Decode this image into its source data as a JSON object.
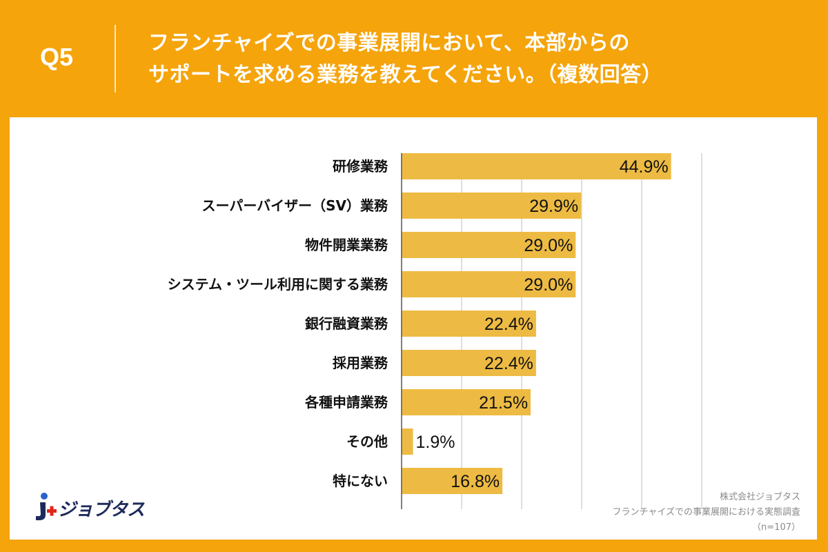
{
  "header": {
    "question_label": "Q5",
    "title_line1": "フランチャイズでの事業展開において、本部からの",
    "title_line2": "サポートを求める業務を教えてください。（複数回答）"
  },
  "colors": {
    "background": "#F5A40C",
    "bar": "#EDBB43",
    "grid": "#bdbdbd",
    "text": "#111111"
  },
  "chart_data": {
    "type": "bar",
    "orientation": "horizontal",
    "categories": [
      "研修業務",
      "スーパーバイザー（SV）業務",
      "物件開業業務",
      "システム・ツール利用に関する業務",
      "銀行融資業務",
      "採用業務",
      "各種申請業務",
      "その他",
      "特にない"
    ],
    "values": [
      44.9,
      29.9,
      29.0,
      29.0,
      22.4,
      22.4,
      21.5,
      1.9,
      16.8
    ],
    "value_labels": [
      "44.9%",
      "29.9%",
      "29.0%",
      "29.0%",
      "22.4%",
      "22.4%",
      "21.5%",
      "1.9%",
      "16.8%"
    ],
    "xlim": [
      0,
      50
    ],
    "grid": true
  },
  "logo": {
    "text": "ジョブタス"
  },
  "source": {
    "line1": "株式会社ジョブタス",
    "line2": "フランチャイズでの事業展開における実態調査",
    "line3": "（n=107）"
  }
}
